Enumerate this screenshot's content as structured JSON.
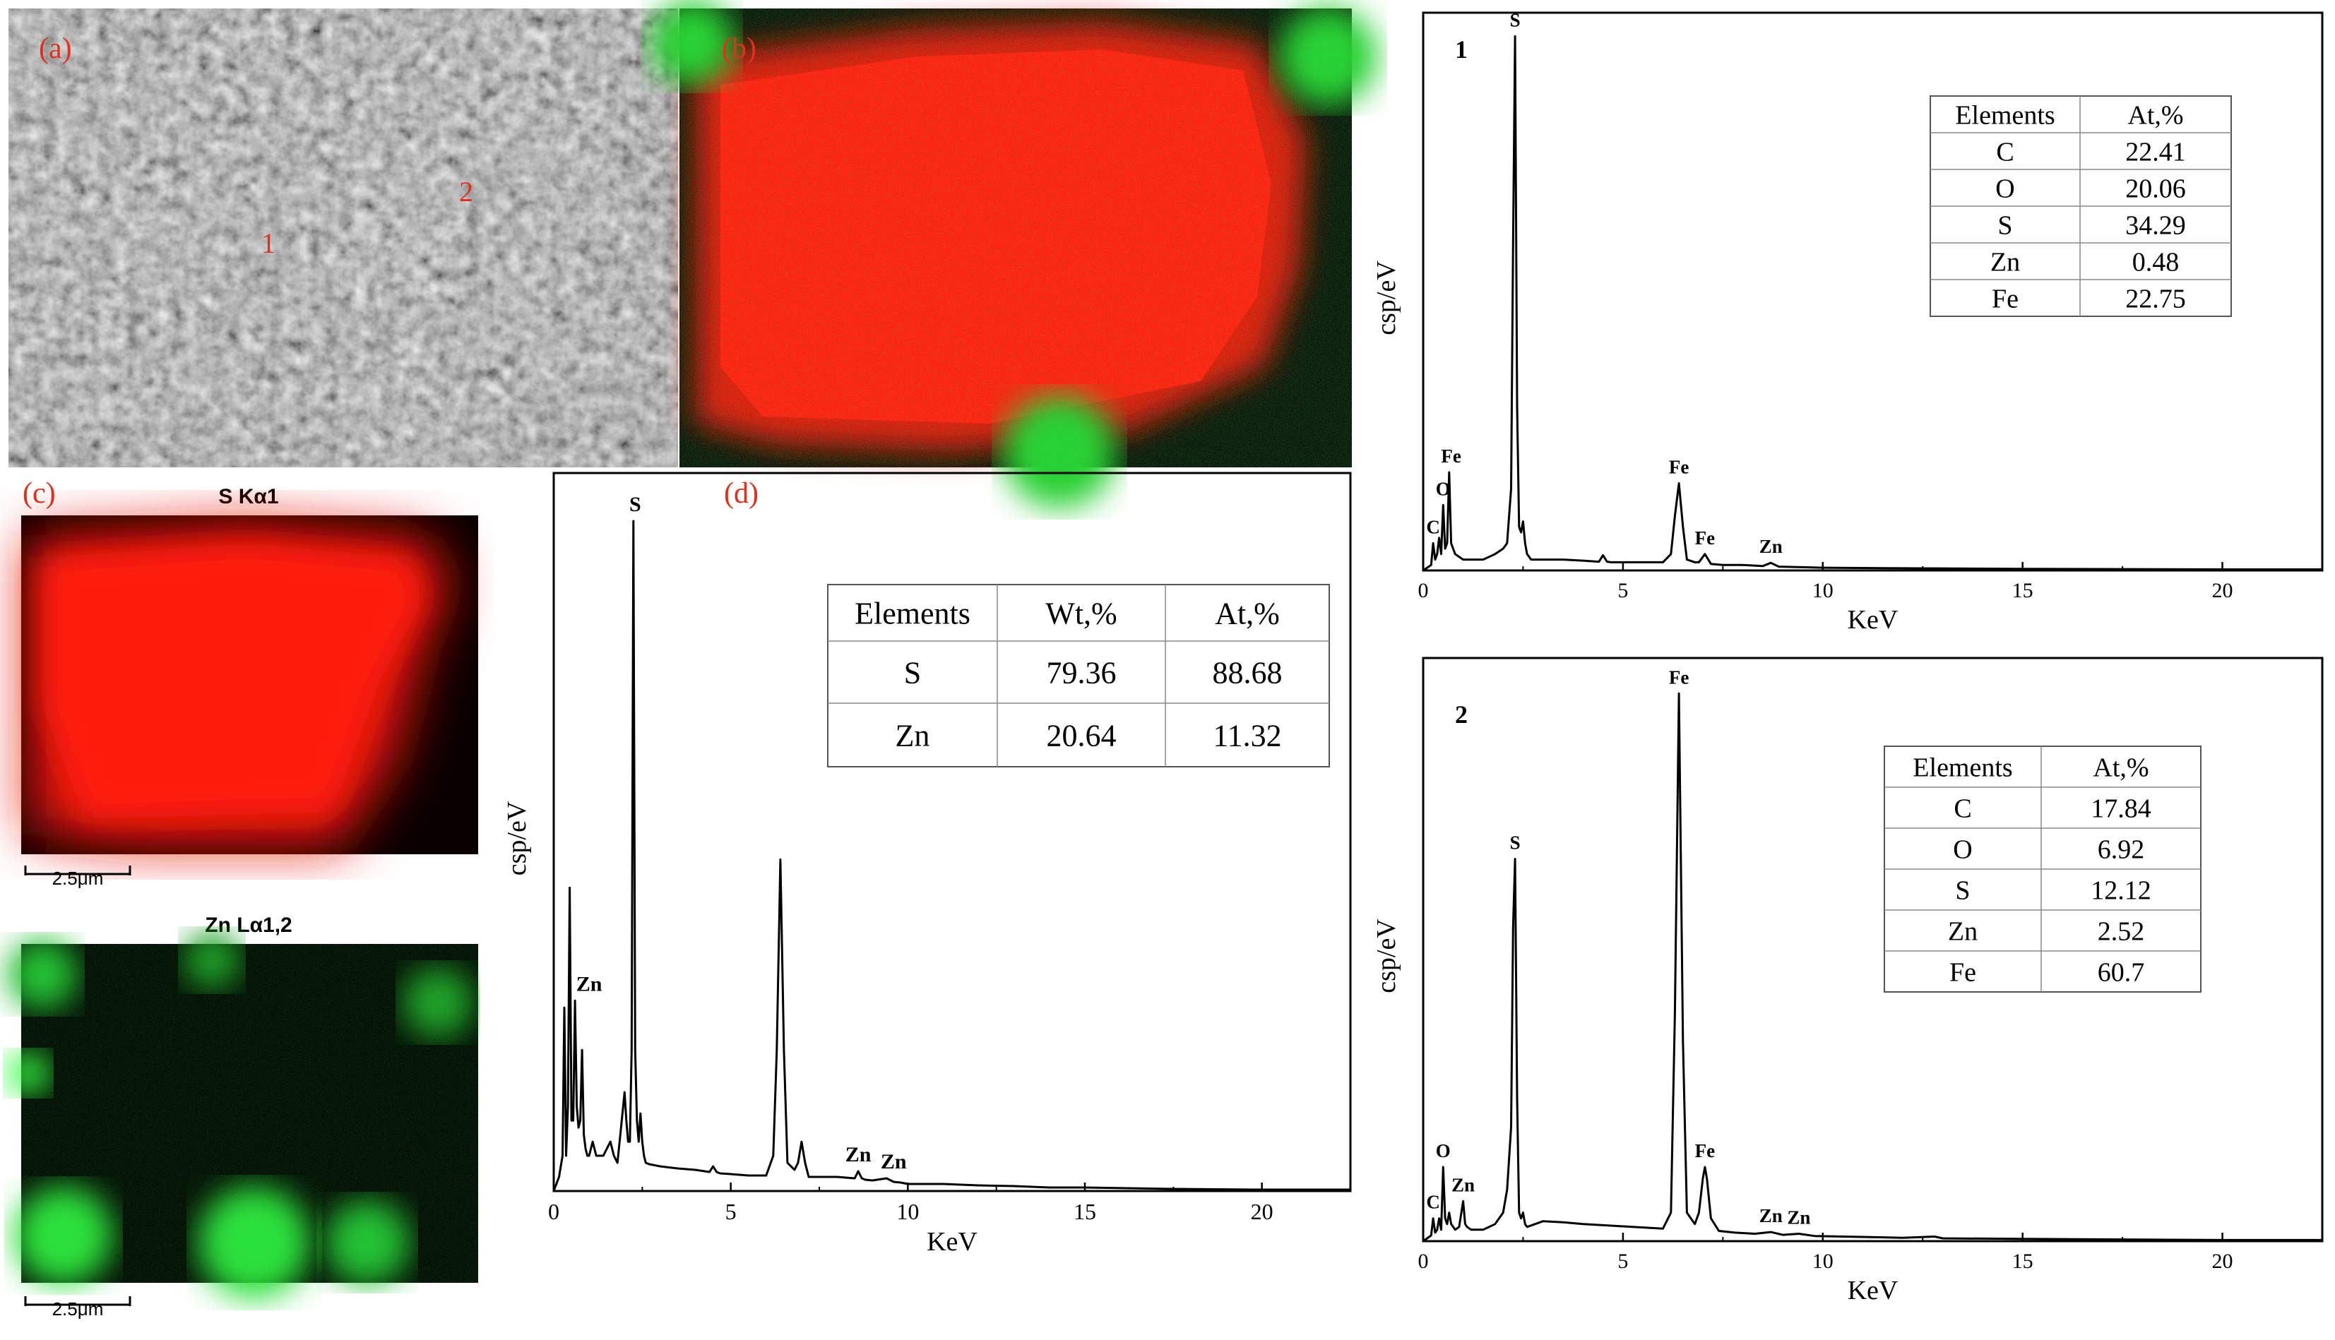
{
  "panels": {
    "a": {
      "label": "(a)",
      "points": [
        "1",
        "2"
      ]
    },
    "b": {
      "label": "(b)"
    },
    "c": {
      "label": "(c)",
      "s_map": {
        "title": "S Kα1",
        "scale": "2.5μm"
      },
      "zn_map": {
        "title": "Zn Lα1,2",
        "scale": "2.5μm"
      }
    },
    "d": {
      "label": "(d)"
    }
  },
  "colors": {
    "s_map": "#ff1a0d",
    "zn_map": "#22e036",
    "panel_label": "#e0301e",
    "spectrum": "#000000"
  },
  "chart_data": [
    {
      "id": "d",
      "type": "line",
      "title": "(d)",
      "xlabel": "KeV",
      "ylabel": "csp/eV",
      "xlim": [
        0,
        22.5
      ],
      "ylim": [
        0,
        1.0
      ],
      "xticks": [
        0,
        5,
        10,
        15,
        20
      ],
      "x": [
        0,
        0.15,
        0.25,
        0.3,
        0.35,
        0.4,
        0.45,
        0.5,
        0.55,
        0.6,
        0.65,
        0.7,
        0.75,
        0.8,
        0.85,
        0.9,
        0.95,
        1.0,
        1.05,
        1.1,
        1.2,
        1.4,
        1.6,
        1.7,
        1.8,
        1.9,
        2.0,
        2.05,
        2.1,
        2.15,
        2.2,
        2.25,
        2.3,
        2.35,
        2.4,
        2.45,
        2.5,
        2.55,
        2.6,
        2.7,
        3.0,
        3.5,
        4.0,
        4.4,
        4.5,
        4.6,
        4.7,
        5.0,
        5.5,
        6.0,
        6.2,
        6.3,
        6.4,
        6.5,
        6.6,
        6.8,
        6.9,
        7.0,
        7.1,
        7.2,
        7.5,
        8.0,
        8.5,
        8.6,
        8.7,
        8.8,
        9.0,
        9.4,
        9.6,
        9.8,
        10.0,
        11.0,
        12.0,
        13.0,
        14.0,
        15.0,
        17.5,
        20.0,
        22.5
      ],
      "y": [
        0,
        0.02,
        0.05,
        0.26,
        0.05,
        0.12,
        0.43,
        0.1,
        0.1,
        0.27,
        0.12,
        0.09,
        0.1,
        0.2,
        0.08,
        0.06,
        0.05,
        0.05,
        0.06,
        0.07,
        0.05,
        0.05,
        0.07,
        0.05,
        0.04,
        0.09,
        0.14,
        0.1,
        0.07,
        0.07,
        0.2,
        0.95,
        0.2,
        0.1,
        0.07,
        0.11,
        0.07,
        0.05,
        0.04,
        0.038,
        0.035,
        0.032,
        0.03,
        0.027,
        0.035,
        0.027,
        0.025,
        0.024,
        0.022,
        0.022,
        0.05,
        0.2,
        0.47,
        0.2,
        0.04,
        0.03,
        0.04,
        0.07,
        0.04,
        0.02,
        0.02,
        0.02,
        0.018,
        0.028,
        0.018,
        0.016,
        0.015,
        0.018,
        0.013,
        0.012,
        0.01,
        0.01,
        0.008,
        0.007,
        0.005,
        0.005,
        0.003,
        0.002,
        0.002
      ],
      "peak_labels": [
        {
          "label": "S",
          "x": 2.3,
          "y": 0.95
        },
        {
          "label": "Zn",
          "x": 1.0,
          "y": 0.27
        },
        {
          "label": "Zn",
          "x": 8.6,
          "y": 0.028
        },
        {
          "label": "Zn",
          "x": 9.6,
          "y": 0.018
        }
      ],
      "table": {
        "columns": [
          "Elements",
          "Wt,%",
          "At,%"
        ],
        "rows": [
          [
            "S",
            "79.36",
            "88.68"
          ],
          [
            "Zn",
            "20.64",
            "11.32"
          ]
        ]
      }
    },
    {
      "id": "1",
      "type": "line",
      "title": "1",
      "xlabel": "KeV",
      "ylabel": "csp/eV",
      "xlim": [
        0,
        22.5
      ],
      "ylim": [
        0,
        1.0
      ],
      "xticks": [
        0,
        5,
        10,
        15,
        20
      ],
      "x": [
        0,
        0.2,
        0.25,
        0.3,
        0.35,
        0.4,
        0.45,
        0.5,
        0.55,
        0.6,
        0.65,
        0.7,
        0.75,
        0.8,
        0.9,
        1.0,
        1.2,
        1.5,
        1.8,
        2.0,
        2.1,
        2.2,
        2.25,
        2.3,
        2.35,
        2.4,
        2.45,
        2.5,
        2.55,
        2.6,
        2.7,
        3.0,
        3.5,
        4.0,
        4.4,
        4.5,
        4.6,
        4.7,
        5.0,
        5.5,
        6.0,
        6.2,
        6.3,
        6.4,
        6.5,
        6.6,
        6.8,
        6.9,
        7.05,
        7.2,
        7.5,
        8.0,
        8.5,
        8.7,
        8.9,
        9.5,
        10.0,
        12.0,
        15.0,
        20.0,
        22.5
      ],
      "y": [
        0,
        0.01,
        0.05,
        0.02,
        0.03,
        0.06,
        0.03,
        0.12,
        0.04,
        0.05,
        0.18,
        0.05,
        0.04,
        0.03,
        0.025,
        0.02,
        0.02,
        0.02,
        0.03,
        0.04,
        0.05,
        0.15,
        0.6,
        0.98,
        0.3,
        0.08,
        0.07,
        0.09,
        0.05,
        0.03,
        0.02,
        0.02,
        0.02,
        0.018,
        0.016,
        0.028,
        0.016,
        0.015,
        0.015,
        0.015,
        0.015,
        0.03,
        0.1,
        0.16,
        0.08,
        0.02,
        0.015,
        0.015,
        0.03,
        0.012,
        0.01,
        0.01,
        0.008,
        0.014,
        0.007,
        0.006,
        0.005,
        0.004,
        0.003,
        0.002,
        0.002
      ],
      "peak_labels": [
        {
          "label": "S",
          "x": 2.3,
          "y": 0.98
        },
        {
          "label": "O",
          "x": 0.5,
          "y": 0.12
        },
        {
          "label": "C",
          "x": 0.25,
          "y": 0.05
        },
        {
          "label": "Fe",
          "x": 0.7,
          "y": 0.18
        },
        {
          "label": "Fe",
          "x": 6.4,
          "y": 0.16
        },
        {
          "label": "Fe",
          "x": 7.05,
          "y": 0.03
        },
        {
          "label": "Zn",
          "x": 8.7,
          "y": 0.014
        }
      ],
      "table": {
        "columns": [
          "Elements",
          "At,%"
        ],
        "rows": [
          [
            "C",
            "22.41"
          ],
          [
            "O",
            "20.06"
          ],
          [
            "S",
            "34.29"
          ],
          [
            "Zn",
            "0.48"
          ],
          [
            "Fe",
            "22.75"
          ]
        ]
      }
    },
    {
      "id": "2",
      "type": "line",
      "title": "2",
      "xlabel": "KeV",
      "ylabel": "csp/eV",
      "xlim": [
        0,
        22.5
      ],
      "ylim": [
        0,
        1.0
      ],
      "xticks": [
        0,
        5,
        10,
        15,
        20
      ],
      "x": [
        0,
        0.2,
        0.25,
        0.3,
        0.35,
        0.4,
        0.45,
        0.5,
        0.55,
        0.6,
        0.65,
        0.7,
        0.8,
        0.9,
        1.0,
        1.05,
        1.1,
        1.2,
        1.5,
        1.8,
        2.0,
        2.1,
        2.2,
        2.25,
        2.3,
        2.35,
        2.4,
        2.45,
        2.5,
        2.55,
        2.6,
        2.8,
        3.0,
        3.5,
        4.0,
        4.5,
        5.0,
        5.5,
        6.0,
        6.2,
        6.3,
        6.4,
        6.5,
        6.6,
        6.8,
        6.9,
        7.0,
        7.05,
        7.1,
        7.2,
        7.4,
        7.8,
        8.3,
        8.7,
        9.0,
        9.4,
        9.8,
        10.5,
        12.0,
        12.8,
        13.0,
        15.0,
        20.0,
        22.5
      ],
      "y": [
        0,
        0.01,
        0.04,
        0.015,
        0.02,
        0.04,
        0.02,
        0.13,
        0.04,
        0.03,
        0.05,
        0.03,
        0.02,
        0.025,
        0.07,
        0.03,
        0.025,
        0.02,
        0.02,
        0.03,
        0.05,
        0.09,
        0.2,
        0.55,
        0.67,
        0.25,
        0.05,
        0.04,
        0.05,
        0.03,
        0.025,
        0.03,
        0.035,
        0.033,
        0.03,
        0.028,
        0.026,
        0.024,
        0.022,
        0.05,
        0.4,
        0.96,
        0.35,
        0.05,
        0.03,
        0.05,
        0.11,
        0.13,
        0.11,
        0.04,
        0.018,
        0.015,
        0.013,
        0.016,
        0.011,
        0.013,
        0.009,
        0.008,
        0.006,
        0.008,
        0.005,
        0.004,
        0.002,
        0.002
      ],
      "peak_labels": [
        {
          "label": "Fe",
          "x": 6.4,
          "y": 0.96
        },
        {
          "label": "S",
          "x": 2.3,
          "y": 0.67
        },
        {
          "label": "O",
          "x": 0.5,
          "y": 0.13
        },
        {
          "label": "C",
          "x": 0.25,
          "y": 0.04
        },
        {
          "label": "Zn",
          "x": 1.0,
          "y": 0.07
        },
        {
          "label": "Fe",
          "x": 7.05,
          "y": 0.13
        },
        {
          "label": "Zn",
          "x": 8.7,
          "y": 0.016
        },
        {
          "label": "Zn",
          "x": 9.4,
          "y": 0.013
        }
      ],
      "table": {
        "columns": [
          "Elements",
          "At,%"
        ],
        "rows": [
          [
            "C",
            "17.84"
          ],
          [
            "O",
            "6.92"
          ],
          [
            "S",
            "12.12"
          ],
          [
            "Zn",
            "2.52"
          ],
          [
            "Fe",
            "60.7"
          ]
        ]
      }
    }
  ]
}
